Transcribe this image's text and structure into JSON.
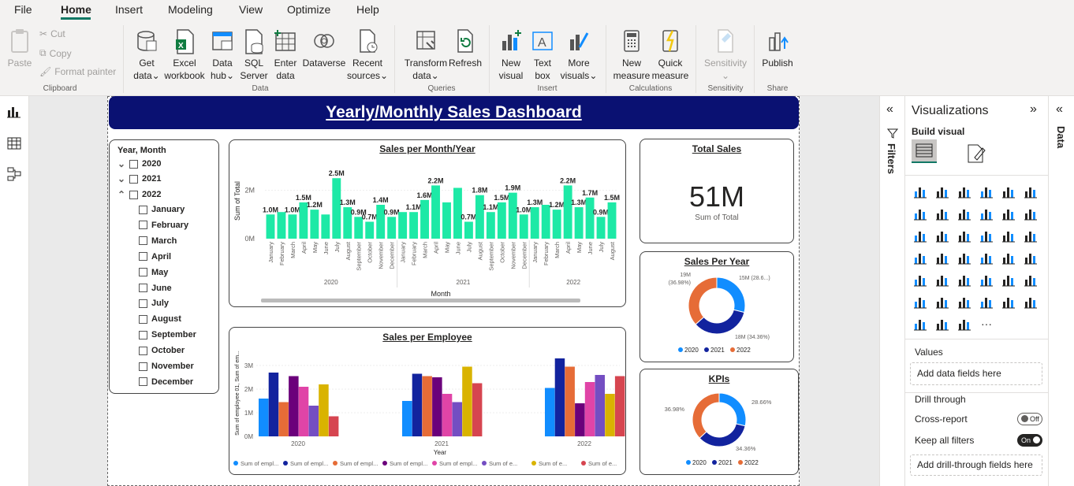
{
  "menu": {
    "items": [
      "File",
      "Home",
      "Insert",
      "Modeling",
      "View",
      "Optimize",
      "Help"
    ],
    "active": "Home"
  },
  "ribbon": {
    "clipboard": {
      "paste": "Paste",
      "cut": "Cut",
      "copy": "Copy",
      "format_painter": "Format painter",
      "label": "Clipboard"
    },
    "data": {
      "get_data": [
        "Get",
        "data"
      ],
      "excel": [
        "Excel",
        "workbook"
      ],
      "data_hub": [
        "Data",
        "hub"
      ],
      "sql": [
        "SQL",
        "Server"
      ],
      "enter": [
        "Enter",
        "data"
      ],
      "dataverse": [
        "Dataverse"
      ],
      "recent": [
        "Recent",
        "sources"
      ],
      "label": "Data"
    },
    "queries": {
      "transform": [
        "Transform",
        "data"
      ],
      "refresh": [
        "Refresh"
      ],
      "label": "Queries"
    },
    "insert": {
      "new_visual": [
        "New",
        "visual"
      ],
      "text_box": [
        "Text",
        "box"
      ],
      "more_visuals": [
        "More",
        "visuals"
      ],
      "label": "Insert"
    },
    "calculations": {
      "new_measure": [
        "New",
        "measure"
      ],
      "quick_measure": [
        "Quick",
        "measure"
      ],
      "label": "Calculations"
    },
    "sensitivity": {
      "sensitivity": [
        "Sensitivity"
      ],
      "label": "Sensitivity"
    },
    "share": {
      "publish": [
        "Publish"
      ],
      "label": "Share"
    }
  },
  "dashboard": {
    "title": "Yearly/Monthly Sales Dashboard",
    "slicer": {
      "title": "Year, Month",
      "years": [
        "2020",
        "2021",
        "2022"
      ],
      "months": [
        "January",
        "February",
        "March",
        "April",
        "May",
        "June",
        "July",
        "August",
        "September",
        "October",
        "November",
        "December"
      ]
    },
    "monthly_chart": {
      "title": "Sales per Month/Year",
      "ylabel": "Sum of Total",
      "xlabel": "Month",
      "ytick_labels": [
        "2M",
        "0M"
      ],
      "color": "#1de9a6"
    },
    "employee_chart": {
      "title": "Sales per Employee",
      "xlabel": "Year",
      "ylabel": "Sum of employee 01, Sum of em...",
      "ytick_labels": [
        "3M",
        "2M",
        "1M",
        "0M"
      ],
      "legend": [
        "Sum of empl...",
        "Sum of empl...",
        "Sum of empl...",
        "Sum of empl...",
        "Sum of empl...",
        "Sum of e...",
        "Sum of e...",
        "Sum of e..."
      ]
    },
    "total_sales": {
      "title": "Total Sales",
      "value": "51M",
      "label": "Sum of Total"
    },
    "sales_per_year": {
      "title": "Sales Per Year",
      "labels": [
        "19M",
        "(36.98%)",
        "15M (28.6...)",
        "18M (34.36%)"
      ],
      "legend": [
        "2020",
        "2021",
        "2022"
      ]
    },
    "kpis": {
      "title": "KPIs",
      "labels": [
        "28.66%",
        "34.36%",
        "36.98%"
      ],
      "legend": [
        "2020",
        "2021",
        "2022"
      ]
    }
  },
  "filters_pane": {
    "label": "Filters"
  },
  "visualizations": {
    "title": "Visualizations",
    "build_visual": "Build visual",
    "values_label": "Values",
    "add_fields": "Add data fields here",
    "drill_through": "Drill through",
    "cross_report": "Cross-report",
    "cross_report_state": "Off",
    "keep_all_filters": "Keep all filters",
    "keep_all_filters_state": "On",
    "add_drill_fields": "Add drill-through fields here"
  },
  "data_pane": {
    "label": "Data"
  },
  "colors": {
    "accent": "#117865",
    "title_bar": "#0a1172",
    "year_2020": "#118dff",
    "year_2021": "#12239e",
    "year_2022": "#e66c37"
  },
  "chart_data": [
    {
      "type": "bar",
      "title": "Sales per Month/Year",
      "xlabel": "Month",
      "ylabel": "Sum of Total",
      "years": [
        "2020",
        "2021",
        "2022"
      ],
      "categories": [
        "January",
        "February",
        "March",
        "April",
        "May",
        "June",
        "July",
        "August",
        "September",
        "October",
        "November",
        "December",
        "January",
        "February",
        "March",
        "April",
        "May",
        "June",
        "July",
        "August",
        "September",
        "October",
        "November",
        "December",
        "January",
        "February",
        "March",
        "April",
        "May",
        "June",
        "July",
        "August"
      ],
      "values": [
        1.0,
        1.1,
        1.0,
        1.5,
        1.2,
        1.0,
        2.5,
        1.3,
        0.9,
        0.7,
        1.4,
        0.9,
        1.1,
        1.1,
        1.6,
        2.2,
        1.5,
        2.1,
        0.7,
        1.8,
        1.1,
        1.5,
        1.9,
        1.0,
        1.3,
        1.4,
        1.2,
        2.2,
        1.3,
        1.7,
        0.9,
        1.5
      ],
      "data_labels": [
        "1.0M",
        "",
        "1.0M",
        "1.5M",
        "1.2M",
        "",
        "2.5M",
        "1.3M",
        "0.9M",
        "0.7M",
        "1.4M",
        "0.9M",
        "",
        "1.1M",
        "1.6M",
        "2.2M",
        "",
        "",
        "0.7M",
        "1.8M",
        "1.1M",
        "1.5M",
        "1.9M",
        "1.0M",
        "1.3M",
        "",
        "1.2M",
        "2.2M",
        "1.3M",
        "1.7M",
        "0.9M",
        "1.5M"
      ],
      "ylim": [
        0,
        2.8
      ]
    },
    {
      "type": "bar",
      "title": "Sales per Employee",
      "xlabel": "Year",
      "categories": [
        "2020",
        "2021",
        "2022"
      ],
      "colors": [
        "#118dff",
        "#12239e",
        "#e66c37",
        "#6b007b",
        "#e044a7",
        "#744ec2",
        "#d9b300",
        "#d64550"
      ],
      "series_values": [
        [
          1.6,
          2.7,
          1.45,
          2.55,
          2.1,
          1.3,
          2.2,
          0.85
        ],
        [
          1.5,
          2.65,
          2.55,
          2.5,
          1.8,
          1.45,
          2.95,
          2.25
        ],
        [
          2.05,
          3.3,
          2.95,
          1.4,
          2.3,
          2.6,
          1.8,
          2.55
        ]
      ],
      "ylim": [
        0,
        3.5
      ]
    },
    {
      "type": "pie",
      "title": "Sales Per Year",
      "categories": [
        "2020",
        "2021",
        "2022"
      ],
      "values": [
        15,
        18,
        19
      ],
      "percent": [
        28.66,
        34.36,
        36.98
      ]
    },
    {
      "type": "pie",
      "title": "KPIs",
      "categories": [
        "2020",
        "2021",
        "2022"
      ],
      "values": [
        28.66,
        34.36,
        36.98
      ]
    }
  ]
}
